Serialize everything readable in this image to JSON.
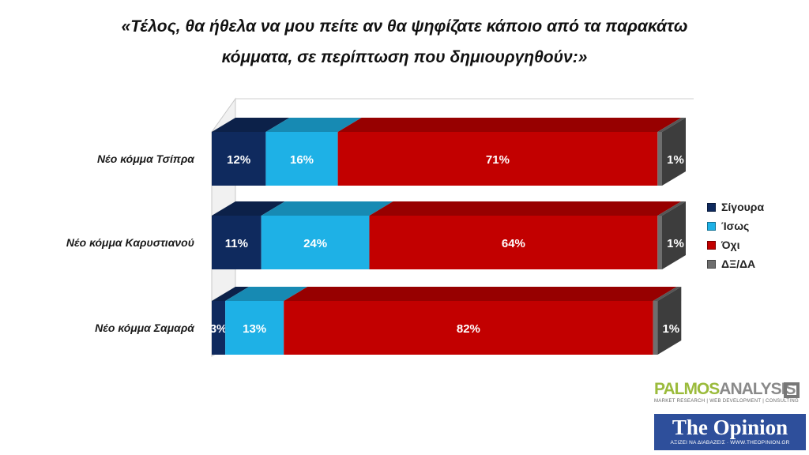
{
  "chart_data": {
    "type": "bar",
    "orientation": "horizontal",
    "stacked": true,
    "percent": true,
    "title_lines": [
      "«Τέλος, θα ήθελα να μου πείτε αν θα ψηφίζατε κάποιο από τα παρακάτω",
      "κόμματα, σε περίπτωση που δημιουργηθούν:»"
    ],
    "categories": [
      "Νέο κόμμα Τσίπρα",
      "Νέο κόμμα Καρυστιανού",
      "Νέο κόμμα Σαμαρά"
    ],
    "series": [
      {
        "name": "Σίγουρα",
        "color": "#0f2a5e",
        "values": [
          12,
          11,
          3
        ],
        "labels": [
          "12%",
          "11%",
          "3%"
        ]
      },
      {
        "name": "Ίσως",
        "color": "#1eb1e6",
        "values": [
          16,
          24,
          13
        ],
        "labels": [
          "16%",
          "24%",
          "13%"
        ]
      },
      {
        "name": "Όχι",
        "color": "#c20000",
        "values": [
          71,
          64,
          82
        ],
        "labels": [
          "71%",
          "64%",
          "82%"
        ]
      },
      {
        "name": "ΔΞ/ΔΑ",
        "color": "#6e6e6e",
        "values": [
          1,
          1,
          1
        ],
        "labels": [
          "1%",
          "1%",
          "1%"
        ]
      }
    ],
    "xlim": [
      0,
      100
    ],
    "legend_position": "right",
    "grid": false,
    "three_d": true
  },
  "logos": {
    "palmos_a": "PALMOS",
    "palmos_b": "ANALYSIS",
    "palmos_sub": "MARKET RESEARCH | WEB DEVELOPMENT | CONSULTING",
    "opinion_name": "The Opinion",
    "opinion_sub": "ΑΞΙΖΕΙ ΝΑ ΔΙΑΒΑΖΕΙΣ · WWW.THEOPINION.GR"
  }
}
